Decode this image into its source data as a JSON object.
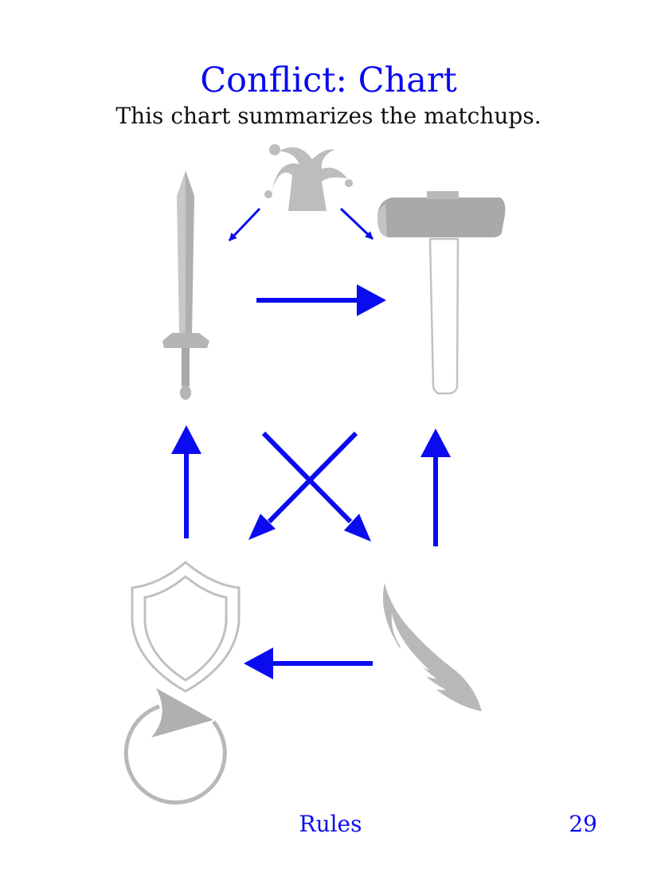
{
  "page": {
    "title": "Conflict: Chart",
    "subtitle": "This chart summarizes the matchups.",
    "footer_section": "Rules",
    "page_number": "29"
  },
  "colors": {
    "accent": "#0b0bf0",
    "icon_gray": "#b8b8b8",
    "icon_dark_gray": "#999999",
    "text": "#111111"
  },
  "icons": [
    "jester-hat-icon",
    "sword-icon",
    "hammer-icon",
    "shield-icon",
    "wing-icon",
    "rotate-arrow-icon"
  ],
  "matchups": [
    {
      "from": "jester-hat-icon",
      "to": "sword-icon"
    },
    {
      "from": "jester-hat-icon",
      "to": "hammer-icon"
    },
    {
      "from": "sword-icon",
      "to": "hammer-icon"
    },
    {
      "from": "shield-icon",
      "to": "sword-icon"
    },
    {
      "from": "wing-icon",
      "to": "hammer-icon"
    },
    {
      "from": "hammer-icon",
      "to": "shield-icon"
    },
    {
      "from": "sword-icon",
      "to": "wing-icon"
    },
    {
      "from": "wing-icon",
      "to": "shield-icon"
    }
  ]
}
